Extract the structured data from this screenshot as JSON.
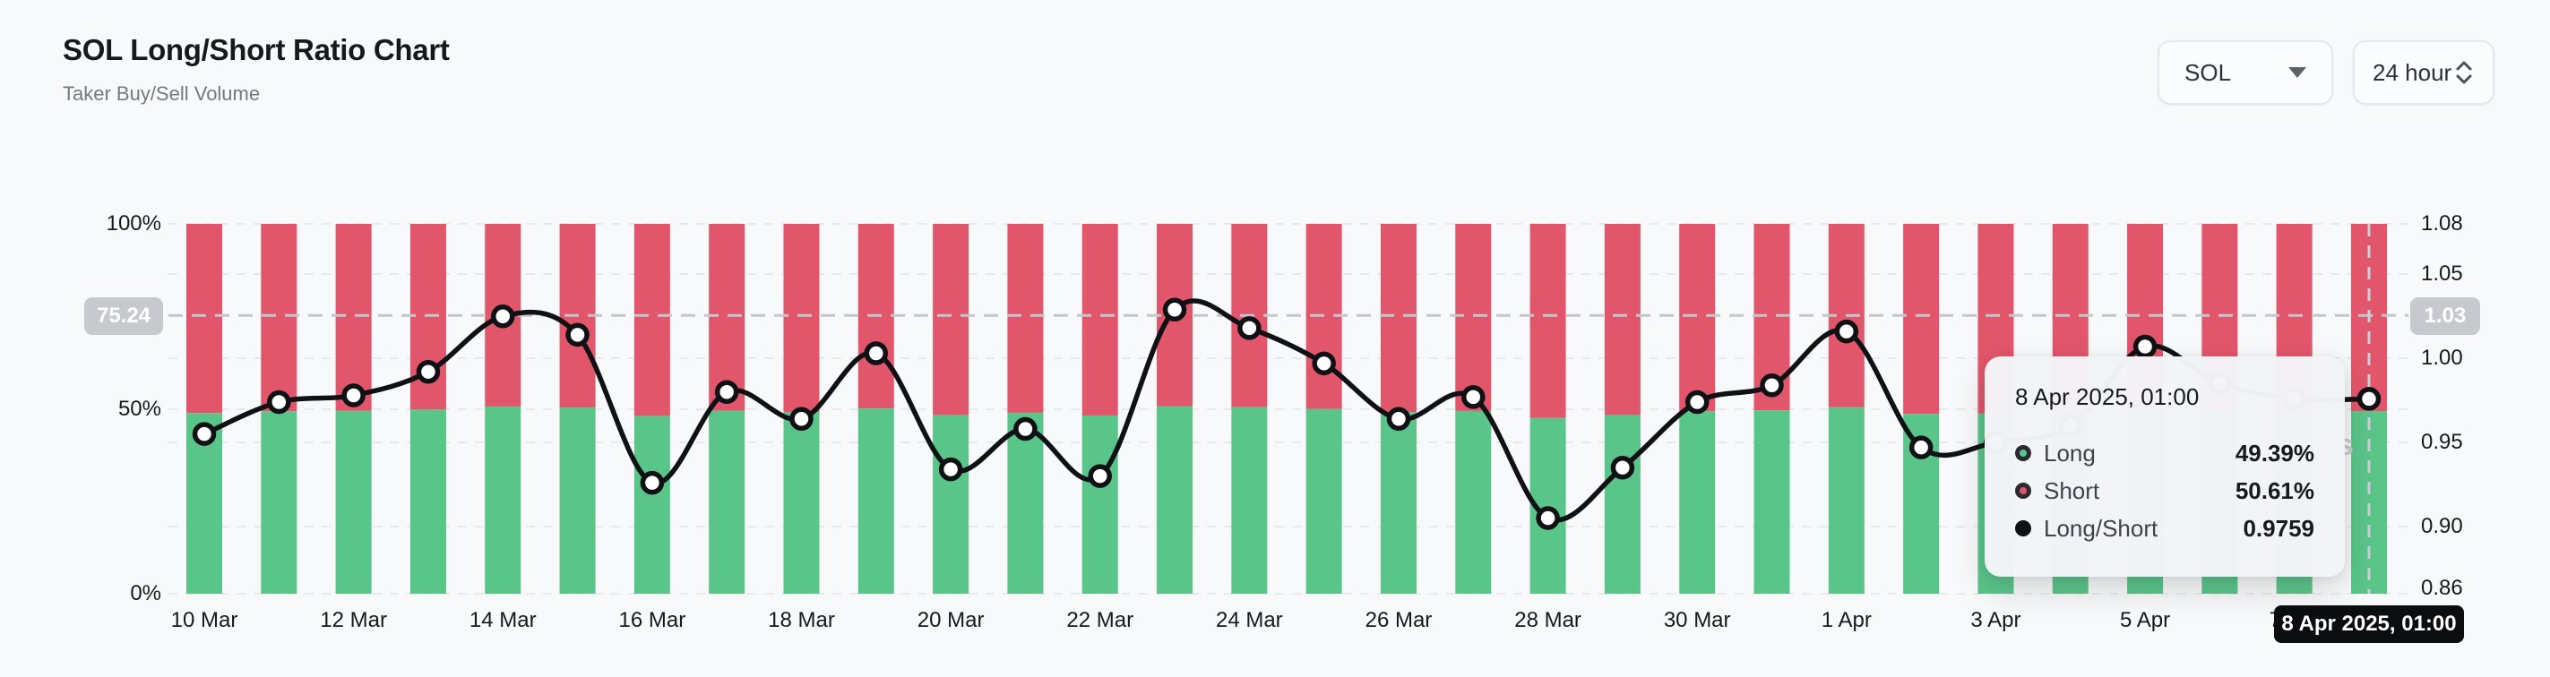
{
  "header": {
    "title": "SOL Long/Short Ratio Chart",
    "subtitle": "Taker Buy/Sell Volume"
  },
  "controls": {
    "symbol_select": {
      "value": "SOL"
    },
    "interval_select": {
      "value": "24 hour"
    }
  },
  "colors": {
    "long_green": "#5ac589",
    "short_red": "#e2566b",
    "ratio_line": "#0f1114",
    "background": "#f8f9fa",
    "gridline": "#e8e9eb",
    "crosshair": "#c3c7cc",
    "badge_gray": "#c6c9ce",
    "badge_black": "#0c0d10"
  },
  "chart_data": {
    "type": "bar+line",
    "title": "SOL Long/Short Ratio Chart",
    "subtitle": "Taker Buy/Sell Volume",
    "categories": [
      "10 Mar",
      "11 Mar",
      "12 Mar",
      "13 Mar",
      "14 Mar",
      "15 Mar",
      "16 Mar",
      "17 Mar",
      "18 Mar",
      "19 Mar",
      "20 Mar",
      "21 Mar",
      "22 Mar",
      "23 Mar",
      "24 Mar",
      "25 Mar",
      "26 Mar",
      "27 Mar",
      "28 Mar",
      "29 Mar",
      "30 Mar",
      "31 Mar",
      "1 Apr",
      "2 Apr",
      "3 Apr",
      "4 Apr",
      "5 Apr",
      "6 Apr",
      "7 Apr",
      "8 Apr"
    ],
    "series": [
      {
        "name": "Long",
        "type": "bar",
        "unit": "%",
        "color": "#5ac589",
        "values": [
          48.85,
          49.34,
          49.44,
          49.8,
          50.62,
          50.35,
          48.08,
          49.49,
          49.08,
          50.07,
          48.29,
          48.93,
          48.19,
          50.71,
          50.45,
          49.92,
          49.08,
          49.42,
          47.51,
          48.32,
          49.34,
          49.6,
          50.4,
          48.64,
          48.72,
          48.98,
          50.17,
          49.62,
          49.39,
          49.39
        ]
      },
      {
        "name": "Short",
        "type": "bar",
        "unit": "%",
        "color": "#e2566b",
        "values": [
          51.15,
          50.66,
          50.56,
          50.2,
          49.38,
          49.65,
          51.92,
          50.51,
          50.92,
          49.93,
          51.71,
          51.07,
          51.81,
          49.29,
          49.55,
          50.08,
          50.92,
          50.58,
          52.49,
          51.68,
          50.66,
          50.4,
          49.6,
          51.36,
          51.28,
          51.02,
          49.83,
          50.38,
          50.61,
          50.61
        ]
      },
      {
        "name": "Long/Short",
        "type": "line",
        "color": "#0f1114",
        "values": [
          0.955,
          0.974,
          0.978,
          0.992,
          1.025,
          1.014,
          0.926,
          0.98,
          0.964,
          1.003,
          0.934,
          0.958,
          0.93,
          1.029,
          1.018,
          0.997,
          0.964,
          0.977,
          0.905,
          0.935,
          0.974,
          0.984,
          1.016,
          0.947,
          0.95,
          0.96,
          1.007,
          0.985,
          0.976,
          0.9759
        ]
      }
    ],
    "left_axis": {
      "labels": [
        "100%",
        "50%",
        "0%"
      ],
      "values": [
        100,
        50,
        0
      ],
      "range": [
        0,
        100
      ]
    },
    "right_axis": {
      "labels": [
        "1.08",
        "1.05",
        "1.00",
        "0.95",
        "0.90",
        "0.86"
      ],
      "values": [
        1.08,
        1.05,
        1.0,
        0.95,
        0.9,
        0.86
      ],
      "range": [
        0.86,
        1.08
      ]
    },
    "x_ticks": [
      {
        "index": 0,
        "label": "10 Mar"
      },
      {
        "index": 2,
        "label": "12 Mar"
      },
      {
        "index": 4,
        "label": "14 Mar"
      },
      {
        "index": 6,
        "label": "16 Mar"
      },
      {
        "index": 8,
        "label": "18 Mar"
      },
      {
        "index": 10,
        "label": "20 Mar"
      },
      {
        "index": 12,
        "label": "22 Mar"
      },
      {
        "index": 14,
        "label": "24 Mar"
      },
      {
        "index": 16,
        "label": "26 Mar"
      },
      {
        "index": 18,
        "label": "28 Mar"
      },
      {
        "index": 20,
        "label": "30 Mar"
      },
      {
        "index": 22,
        "label": "1 Apr"
      },
      {
        "index": 24,
        "label": "3 Apr"
      },
      {
        "index": 26,
        "label": "5 Apr"
      },
      {
        "index": 28,
        "label": "7 Apr"
      }
    ],
    "grid": "horizontal-dashed",
    "legend_position": "none"
  },
  "crosshair": {
    "pct_label": "75.24",
    "pct_value": 75.24,
    "ratio_label": "1.03",
    "ratio_value": 1.03,
    "date_label": "8 Apr 2025, 01:00",
    "index": 29
  },
  "tooltip": {
    "title": "8 Apr 2025, 01:00",
    "rows": [
      {
        "label": "Long",
        "value": "49.39%"
      },
      {
        "label": "Short",
        "value": "50.61%"
      },
      {
        "label": "Long/Short",
        "value": "0.9759"
      }
    ]
  },
  "watermark": "s"
}
